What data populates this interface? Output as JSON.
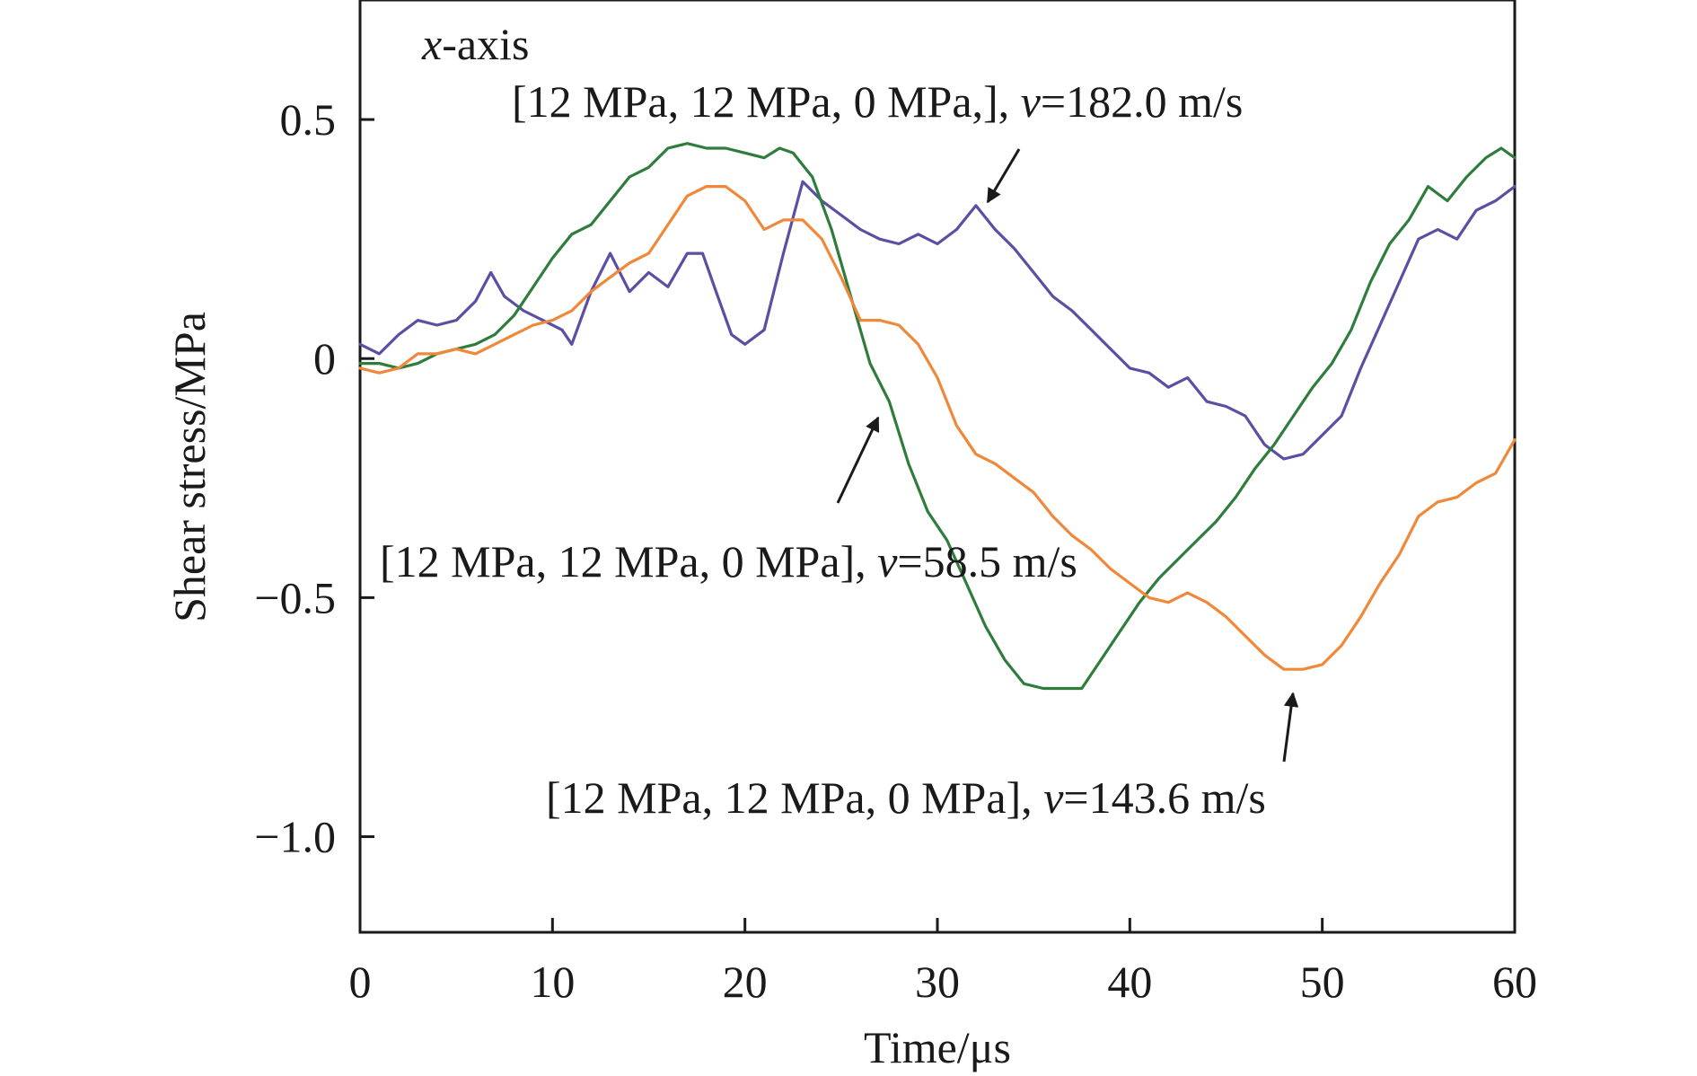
{
  "chart_data": {
    "type": "line",
    "title": "",
    "xlabel": "Time/μs",
    "ylabel": "Shear stress/MPa",
    "xlim": [
      0,
      60
    ],
    "ylim": [
      -1.2,
      0.75
    ],
    "x_ticks": [
      0,
      10,
      20,
      30,
      40,
      50,
      60
    ],
    "x_tick_labels": [
      "0",
      "10",
      "20",
      "30",
      "40",
      "50",
      "60"
    ],
    "y_ticks": [
      0.5,
      0,
      -0.5,
      -1.0
    ],
    "y_tick_labels": [
      "0.5",
      "0",
      "−0.5",
      "−1.0"
    ],
    "grid": false,
    "legend": "none",
    "corner_label": {
      "var": "x",
      "rest": "-axis"
    },
    "series": [
      {
        "color": "#5a4fa3",
        "annotation": {
          "prefix": "[12 MPa, 12 MPa, 0 MPa,], ",
          "var": "v",
          "suffix": "=182.0 m/s"
        },
        "points": [
          [
            0,
            0.03
          ],
          [
            1,
            0.01
          ],
          [
            2,
            0.05
          ],
          [
            3,
            0.08
          ],
          [
            4,
            0.07
          ],
          [
            5,
            0.08
          ],
          [
            6,
            0.12
          ],
          [
            6.8,
            0.18
          ],
          [
            7.5,
            0.13
          ],
          [
            8.5,
            0.1
          ],
          [
            9.5,
            0.08
          ],
          [
            10.5,
            0.06
          ],
          [
            11,
            0.03
          ],
          [
            12,
            0.14
          ],
          [
            13,
            0.22
          ],
          [
            14,
            0.14
          ],
          [
            15,
            0.18
          ],
          [
            16,
            0.15
          ],
          [
            17,
            0.22
          ],
          [
            17.8,
            0.22
          ],
          [
            18.5,
            0.14
          ],
          [
            19.3,
            0.05
          ],
          [
            20,
            0.03
          ],
          [
            21,
            0.06
          ],
          [
            22,
            0.22
          ],
          [
            23,
            0.37
          ],
          [
            24,
            0.33
          ],
          [
            25,
            0.3
          ],
          [
            26,
            0.27
          ],
          [
            27,
            0.25
          ],
          [
            28,
            0.24
          ],
          [
            29,
            0.26
          ],
          [
            30,
            0.24
          ],
          [
            31,
            0.27
          ],
          [
            32,
            0.32
          ],
          [
            33,
            0.27
          ],
          [
            34,
            0.23
          ],
          [
            35,
            0.18
          ],
          [
            36,
            0.13
          ],
          [
            37,
            0.1
          ],
          [
            38,
            0.06
          ],
          [
            39,
            0.02
          ],
          [
            40,
            -0.02
          ],
          [
            41,
            -0.03
          ],
          [
            42,
            -0.06
          ],
          [
            43,
            -0.04
          ],
          [
            44,
            -0.09
          ],
          [
            45,
            -0.1
          ],
          [
            46,
            -0.12
          ],
          [
            47,
            -0.18
          ],
          [
            48,
            -0.21
          ],
          [
            49,
            -0.2
          ],
          [
            50,
            -0.16
          ],
          [
            51,
            -0.12
          ],
          [
            52,
            -0.02
          ],
          [
            53,
            0.07
          ],
          [
            54,
            0.16
          ],
          [
            55,
            0.25
          ],
          [
            56,
            0.27
          ],
          [
            57,
            0.25
          ],
          [
            58,
            0.31
          ],
          [
            59,
            0.33
          ],
          [
            60,
            0.36
          ]
        ]
      },
      {
        "color": "#2f7d3c",
        "annotation": {
          "prefix": "[12 MPa, 12 MPa, 0 MPa], ",
          "var": "v",
          "suffix": "=58.5 m/s"
        },
        "points": [
          [
            0,
            -0.01
          ],
          [
            1,
            -0.01
          ],
          [
            2,
            -0.02
          ],
          [
            3,
            -0.01
          ],
          [
            4,
            0.01
          ],
          [
            5,
            0.02
          ],
          [
            6,
            0.03
          ],
          [
            7,
            0.05
          ],
          [
            8,
            0.09
          ],
          [
            9,
            0.15
          ],
          [
            10,
            0.21
          ],
          [
            11,
            0.26
          ],
          [
            12,
            0.28
          ],
          [
            13,
            0.33
          ],
          [
            14,
            0.38
          ],
          [
            15,
            0.4
          ],
          [
            16,
            0.44
          ],
          [
            17,
            0.45
          ],
          [
            18,
            0.44
          ],
          [
            19,
            0.44
          ],
          [
            20,
            0.43
          ],
          [
            21,
            0.42
          ],
          [
            21.8,
            0.44
          ],
          [
            22.5,
            0.43
          ],
          [
            23.5,
            0.38
          ],
          [
            24.5,
            0.27
          ],
          [
            25.5,
            0.13
          ],
          [
            26.5,
            -0.01
          ],
          [
            27.5,
            -0.09
          ],
          [
            28.5,
            -0.22
          ],
          [
            29.5,
            -0.32
          ],
          [
            30.5,
            -0.38
          ],
          [
            31.5,
            -0.47
          ],
          [
            32.5,
            -0.56
          ],
          [
            33.5,
            -0.63
          ],
          [
            34.5,
            -0.68
          ],
          [
            35.5,
            -0.69
          ],
          [
            36.5,
            -0.69
          ],
          [
            37.5,
            -0.69
          ],
          [
            38.5,
            -0.63
          ],
          [
            39.5,
            -0.57
          ],
          [
            40.5,
            -0.51
          ],
          [
            41.5,
            -0.46
          ],
          [
            42.5,
            -0.42
          ],
          [
            43.5,
            -0.38
          ],
          [
            44.5,
            -0.34
          ],
          [
            45.5,
            -0.29
          ],
          [
            46.5,
            -0.23
          ],
          [
            47.5,
            -0.18
          ],
          [
            48.5,
            -0.12
          ],
          [
            49.5,
            -0.06
          ],
          [
            50.5,
            -0.01
          ],
          [
            51.5,
            0.06
          ],
          [
            52.5,
            0.16
          ],
          [
            53.5,
            0.24
          ],
          [
            54.5,
            0.29
          ],
          [
            55.5,
            0.36
          ],
          [
            56.5,
            0.33
          ],
          [
            57.5,
            0.38
          ],
          [
            58.5,
            0.42
          ],
          [
            59.3,
            0.44
          ],
          [
            60,
            0.42
          ]
        ]
      },
      {
        "color": "#f0883a",
        "annotation": {
          "prefix": "[12 MPa, 12 MPa, 0 MPa], ",
          "var": "v",
          "suffix": "=143.6 m/s"
        },
        "points": [
          [
            0,
            -0.02
          ],
          [
            1,
            -0.03
          ],
          [
            2,
            -0.02
          ],
          [
            3,
            0.01
          ],
          [
            4,
            0.01
          ],
          [
            5,
            0.02
          ],
          [
            6,
            0.01
          ],
          [
            7,
            0.03
          ],
          [
            8,
            0.05
          ],
          [
            9,
            0.07
          ],
          [
            10,
            0.08
          ],
          [
            11,
            0.1
          ],
          [
            12,
            0.14
          ],
          [
            13,
            0.17
          ],
          [
            14,
            0.2
          ],
          [
            15,
            0.22
          ],
          [
            16,
            0.28
          ],
          [
            17,
            0.34
          ],
          [
            18,
            0.36
          ],
          [
            19,
            0.36
          ],
          [
            20,
            0.33
          ],
          [
            21,
            0.27
          ],
          [
            22,
            0.29
          ],
          [
            23,
            0.29
          ],
          [
            24,
            0.25
          ],
          [
            25,
            0.17
          ],
          [
            26,
            0.08
          ],
          [
            27,
            0.08
          ],
          [
            28,
            0.07
          ],
          [
            29,
            0.03
          ],
          [
            30,
            -0.04
          ],
          [
            31,
            -0.14
          ],
          [
            32,
            -0.2
          ],
          [
            33,
            -0.22
          ],
          [
            34,
            -0.25
          ],
          [
            35,
            -0.28
          ],
          [
            36,
            -0.33
          ],
          [
            37,
            -0.37
          ],
          [
            38,
            -0.4
          ],
          [
            39,
            -0.44
          ],
          [
            40,
            -0.47
          ],
          [
            41,
            -0.5
          ],
          [
            42,
            -0.51
          ],
          [
            43,
            -0.49
          ],
          [
            44,
            -0.51
          ],
          [
            45,
            -0.54
          ],
          [
            46,
            -0.58
          ],
          [
            47,
            -0.62
          ],
          [
            48,
            -0.65
          ],
          [
            49,
            -0.65
          ],
          [
            50,
            -0.64
          ],
          [
            51,
            -0.6
          ],
          [
            52,
            -0.54
          ],
          [
            53,
            -0.47
          ],
          [
            54,
            -0.41
          ],
          [
            55,
            -0.33
          ],
          [
            56,
            -0.3
          ],
          [
            57,
            -0.29
          ],
          [
            58,
            -0.26
          ],
          [
            59,
            -0.24
          ],
          [
            60,
            -0.17
          ]
        ]
      }
    ]
  }
}
